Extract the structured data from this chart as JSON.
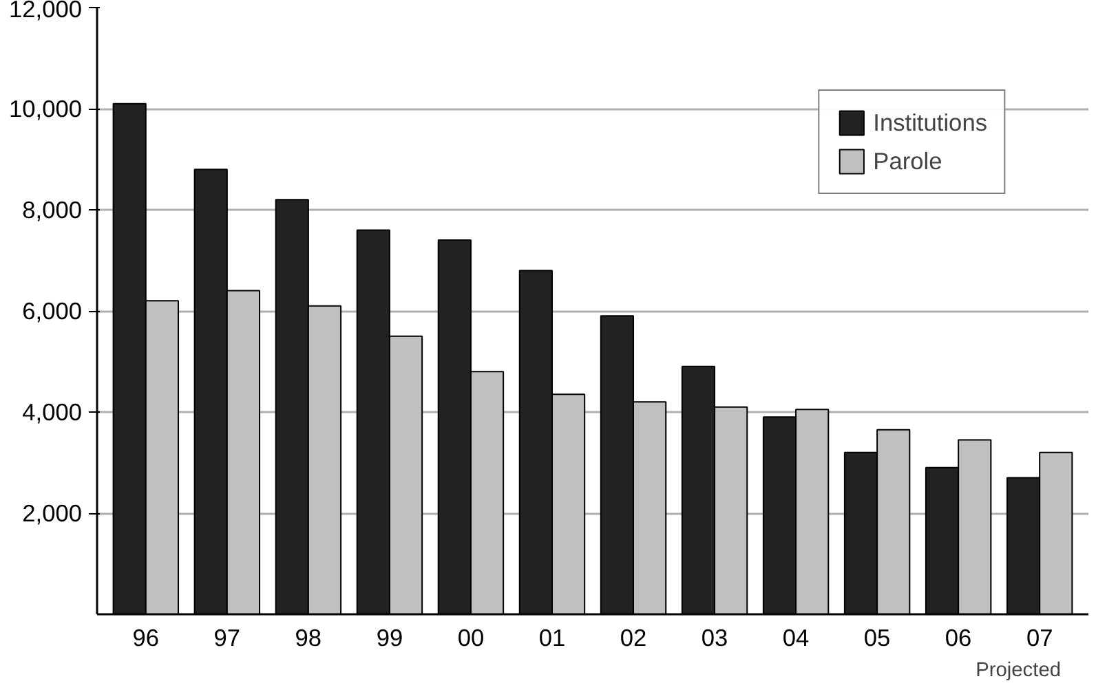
{
  "chart_data": {
    "type": "bar",
    "categories": [
      "96",
      "97",
      "98",
      "99",
      "00",
      "01",
      "02",
      "03",
      "04",
      "05",
      "06",
      "07"
    ],
    "series": [
      {
        "name": "Institutions",
        "color": "#222222",
        "values": [
          10100,
          8800,
          8200,
          7600,
          7400,
          6800,
          5900,
          4900,
          3900,
          3200,
          2900,
          2700
        ]
      },
      {
        "name": "Parole",
        "color": "#c0c0c0",
        "values": [
          6200,
          6400,
          6100,
          5500,
          4800,
          4350,
          4200,
          4100,
          4050,
          3650,
          3450,
          3200
        ]
      }
    ],
    "ylim": [
      0,
      12000
    ],
    "yticks": [
      {
        "value": 2000,
        "label": "2,000"
      },
      {
        "value": 4000,
        "label": "4,000"
      },
      {
        "value": 6000,
        "label": "6,000"
      },
      {
        "value": 8000,
        "label": "8,000"
      },
      {
        "value": 10000,
        "label": "10,000"
      },
      {
        "value": 12000,
        "label": "12,000"
      }
    ],
    "grid": "y",
    "legend": "top right",
    "annotations": [
      "Projected"
    ]
  }
}
